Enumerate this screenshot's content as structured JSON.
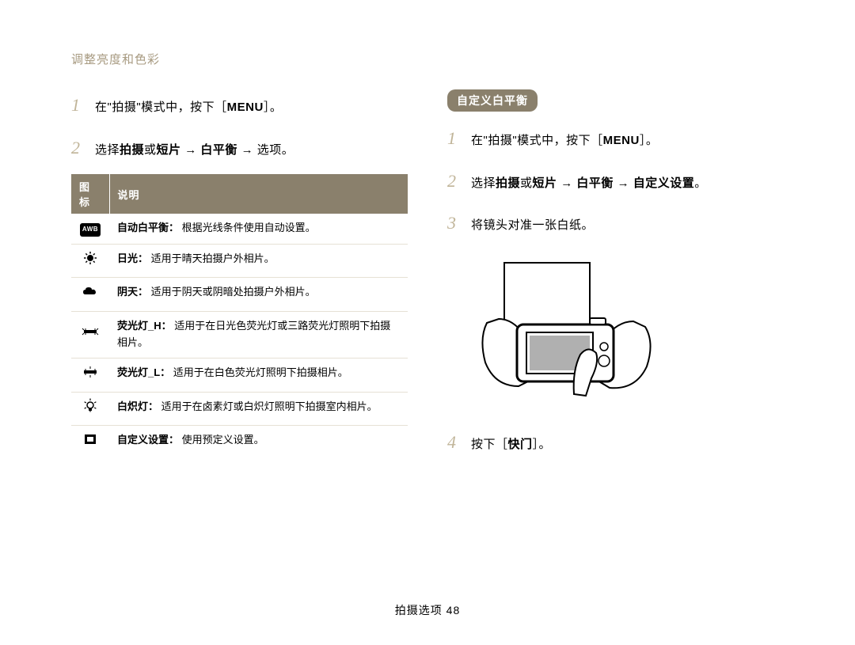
{
  "page_title": "调整亮度和色彩",
  "footer": "拍摄选项  48",
  "colors": {
    "accent": "#a89b82",
    "step_num": "#c0b498",
    "header_bg": "#8a806c",
    "row_border": "#e6e1d5"
  },
  "left": {
    "steps": [
      {
        "num": "1",
        "parts": [
          {
            "t": "在\"拍摄\"模式中，按下［",
            "b": false
          },
          {
            "t": "MENU",
            "b": true
          },
          {
            "t": "］。",
            "b": false
          }
        ]
      },
      {
        "num": "2",
        "parts": [
          {
            "t": "选择",
            "b": false
          },
          {
            "t": "拍摄",
            "b": true
          },
          {
            "t": "或",
            "b": false
          },
          {
            "t": "短片",
            "b": true
          },
          {
            "t": " → ",
            "b": false
          },
          {
            "t": "白平衡",
            "b": true
          },
          {
            "t": " → 选项。",
            "b": false
          }
        ]
      }
    ],
    "table_headers": [
      "图标",
      "说明"
    ],
    "rows": [
      {
        "icon": "awb",
        "label": "自动白平衡：",
        "text": " 根据光线条件使用自动设置。"
      },
      {
        "icon": "sun",
        "label": "日光：",
        "text": " 适用于晴天拍摄户外相片。"
      },
      {
        "icon": "cloud",
        "label": "阴天：",
        "text": " 适用于阴天或阴暗处拍摄户外相片。"
      },
      {
        "icon": "fluoro-h",
        "label": "荧光灯_H：",
        "text": " 适用于在日光色荧光灯或三路荧光灯照明下拍摄相片。"
      },
      {
        "icon": "fluoro-l",
        "label": "荧光灯_L：",
        "text": " 适用于在白色荧光灯照明下拍摄相片。"
      },
      {
        "icon": "bulb",
        "label": "白炽灯：",
        "text": " 适用于在卤素灯或白炽灯照明下拍摄室内相片。"
      },
      {
        "icon": "custom",
        "label": "自定义设置：",
        "text": " 使用预定义设置。"
      }
    ]
  },
  "right": {
    "subheading": "自定义白平衡",
    "steps_top": [
      {
        "num": "1",
        "parts": [
          {
            "t": "在\"拍摄\"模式中，按下［",
            "b": false
          },
          {
            "t": "MENU",
            "b": true
          },
          {
            "t": "］。",
            "b": false
          }
        ]
      },
      {
        "num": "2",
        "parts": [
          {
            "t": "选择",
            "b": false
          },
          {
            "t": "拍摄",
            "b": true
          },
          {
            "t": "或",
            "b": false
          },
          {
            "t": "短片",
            "b": true
          },
          {
            "t": " → ",
            "b": false
          },
          {
            "t": "白平衡",
            "b": true
          },
          {
            "t": " → ",
            "b": false
          },
          {
            "t": "自定义设置",
            "b": true
          },
          {
            "t": "。",
            "b": false
          }
        ]
      },
      {
        "num": "3",
        "parts": [
          {
            "t": "将镜头对准一张白纸。",
            "b": false
          }
        ]
      }
    ],
    "steps_bottom": [
      {
        "num": "4",
        "parts": [
          {
            "t": "按下［",
            "b": false
          },
          {
            "t": "快门",
            "b": true
          },
          {
            "t": "］。",
            "b": false
          }
        ]
      }
    ]
  }
}
